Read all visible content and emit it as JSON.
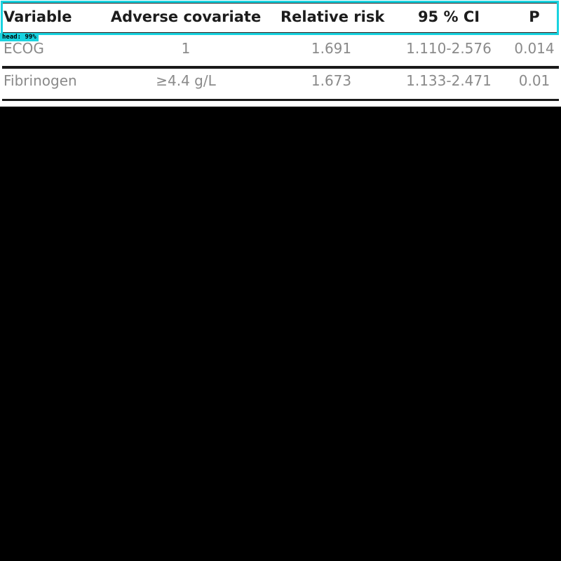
{
  "table": {
    "headers": [
      "Variable",
      "Adverse covariate",
      "Relative risk",
      "95 % CI",
      "P"
    ],
    "rows": [
      [
        "ECOG",
        "1",
        "1.691",
        "1.110-2.576",
        "0.014"
      ],
      [
        "Fibrinogen",
        "≥4.4 g/L",
        "1.673",
        "1.133-2.471",
        "0.01"
      ]
    ]
  },
  "detection": {
    "label": "head: 99%",
    "color": "#19d3e0"
  },
  "colors": {
    "header_text": "#1c1c1c",
    "body_text": "#8a8a8a",
    "rule": "#1a1a1a",
    "background_below": "#000000"
  }
}
